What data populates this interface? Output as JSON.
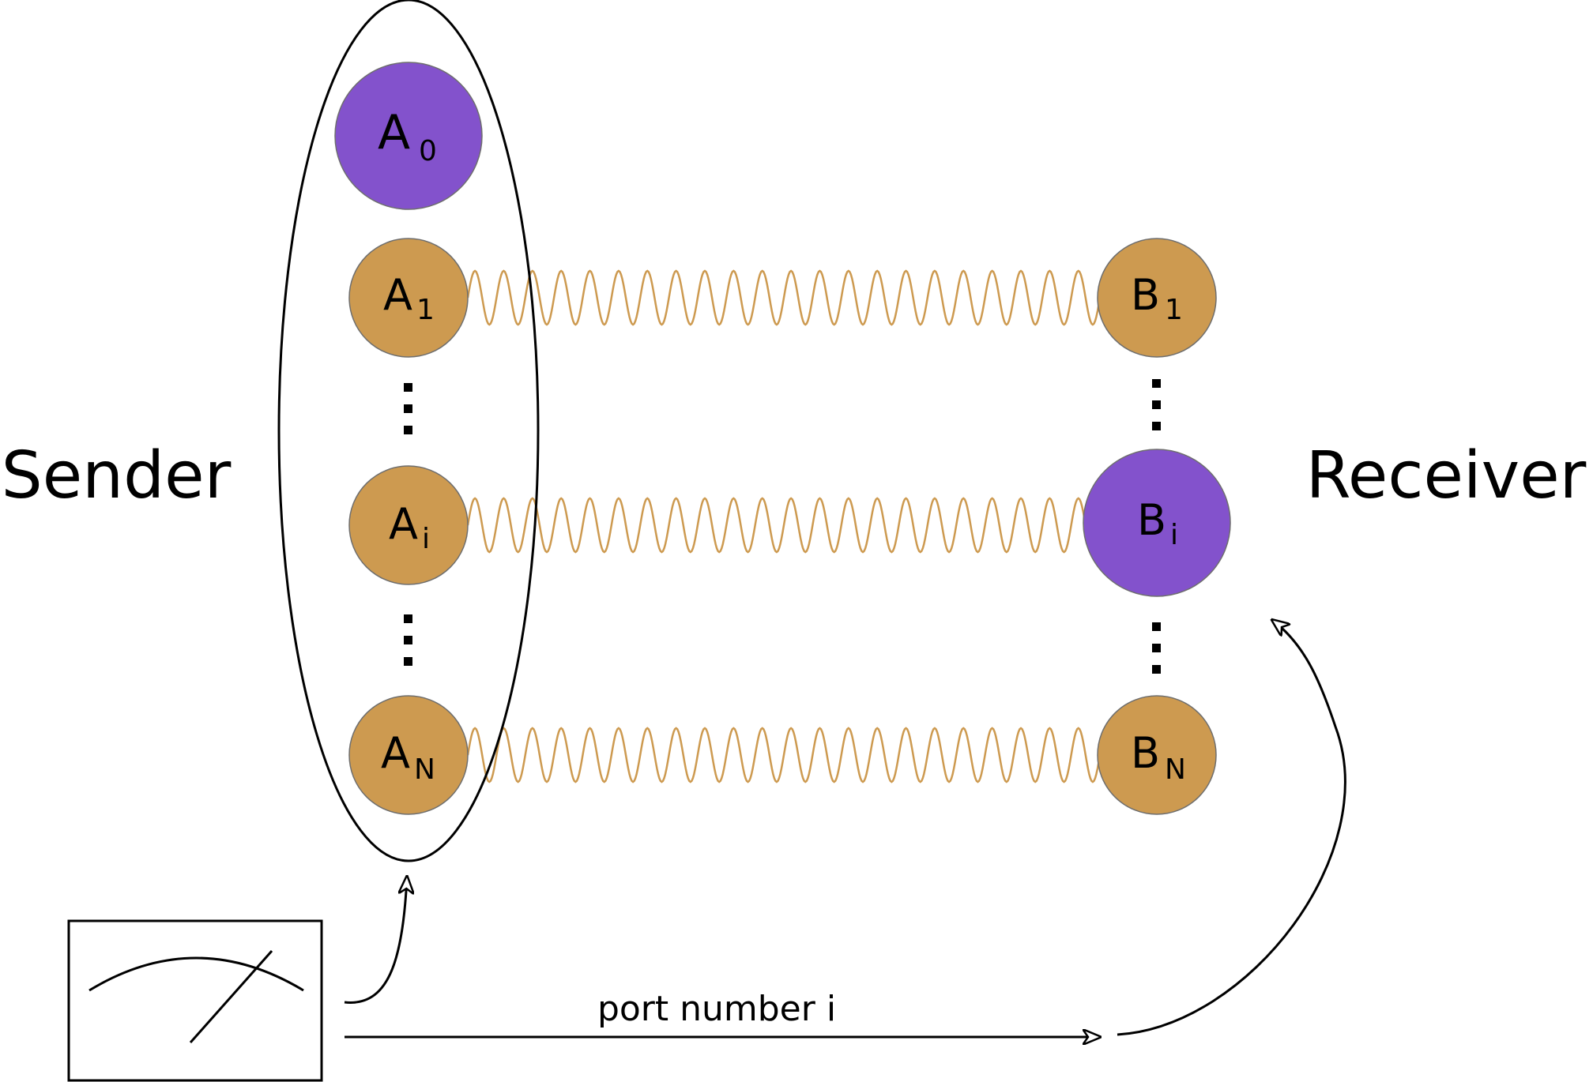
{
  "colors": {
    "purple": "#8352cc",
    "gold": "#cd9a50",
    "node_stroke": "#6e6e6e",
    "line": "#000000"
  },
  "labels": {
    "sender": "Sender",
    "receiver": "Receiver",
    "port": "port number i"
  },
  "nodes": {
    "a0": {
      "main": "A",
      "sub": "0",
      "color": "purple"
    },
    "a1": {
      "main": "A",
      "sub": "1",
      "color": "gold"
    },
    "ai": {
      "main": "A",
      "sub": "i",
      "color": "gold"
    },
    "an": {
      "main": "A",
      "sub": "N",
      "color": "gold"
    },
    "b1": {
      "main": "B",
      "sub": "1",
      "color": "gold"
    },
    "bi": {
      "main": "B",
      "sub": "i",
      "color": "purple"
    },
    "bn": {
      "main": "B",
      "sub": "N",
      "color": "gold"
    }
  },
  "icons": {
    "meter": "meter-icon"
  }
}
